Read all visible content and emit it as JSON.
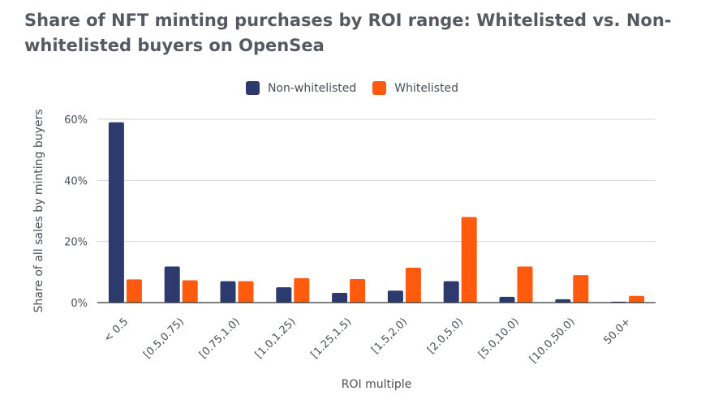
{
  "chart_data": {
    "type": "bar",
    "title": "Share of NFT minting purchases by ROI range: Whitelisted vs. Non-whitelisted buyers on OpenSea",
    "xlabel": "ROI multiple",
    "ylabel": "Share of all sales by minting buyers",
    "ylim": [
      0,
      60
    ],
    "yticks": [
      0,
      20,
      40,
      60
    ],
    "ytick_labels": [
      "0%",
      "20%",
      "40%",
      "60%"
    ],
    "categories": [
      "< 0.5",
      "[0.5,0.75)",
      "[0.75,1.0)",
      "[1.0,1.25)",
      "[1.25,1.5)",
      "[1.5,2.0)",
      "[2.0,5.0)",
      "[5.0,10.0)",
      "[10.0,50.0)",
      "50.0+"
    ],
    "series": [
      {
        "name": "Non-whitelisted",
        "color": "#2d3a6e",
        "values": [
          59.0,
          11.8,
          7.0,
          5.0,
          3.2,
          3.9,
          7.0,
          1.9,
          1.1,
          0.3
        ]
      },
      {
        "name": "Whitelisted",
        "color": "#ff5a0d",
        "values": [
          7.6,
          7.3,
          7.0,
          8.0,
          7.7,
          11.4,
          28.0,
          11.8,
          9.0,
          2.2
        ]
      }
    ],
    "legend_position": "top-center",
    "grid": true
  }
}
